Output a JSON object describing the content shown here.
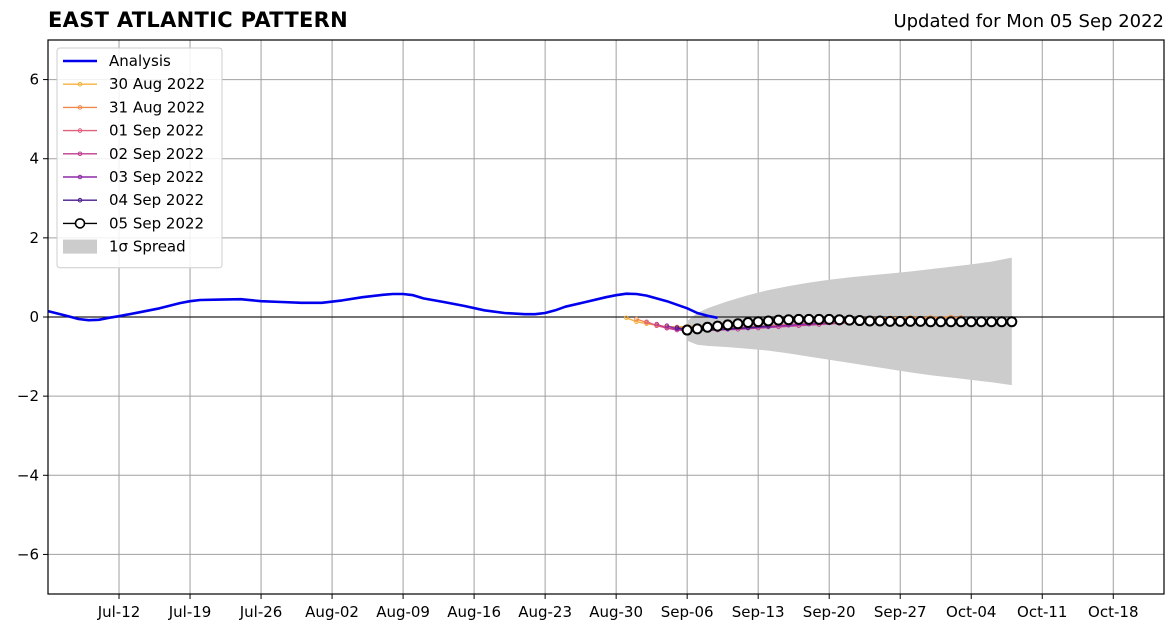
{
  "header": {
    "title": "EAST ATLANTIC PATTERN",
    "updated": "Updated for Mon 05 Sep 2022"
  },
  "chart_data": {
    "type": "line",
    "title": "EAST ATLANTIC PATTERN",
    "subtitle": "Updated for Mon 05 Sep 2022",
    "xlabel": "",
    "ylabel": "",
    "ylim": [
      -7,
      7
    ],
    "yticks": [
      -6,
      -4,
      -2,
      0,
      2,
      4,
      6
    ],
    "ytick_labels": [
      "−6",
      "−4",
      "−2",
      "0",
      "2",
      "4",
      "6"
    ],
    "xlim": [
      "2022-07-05",
      "2022-10-23"
    ],
    "xticks": [
      "2022-07-12",
      "2022-07-19",
      "2022-07-26",
      "2022-08-02",
      "2022-08-09",
      "2022-08-16",
      "2022-08-23",
      "2022-08-30",
      "2022-09-06",
      "2022-09-13",
      "2022-09-20",
      "2022-09-27",
      "2022-10-04",
      "2022-10-11",
      "2022-10-18"
    ],
    "xtick_labels": [
      "Jul-12",
      "Jul-19",
      "Jul-26",
      "Aug-02",
      "Aug-09",
      "Aug-16",
      "Aug-23",
      "Aug-30",
      "Sep-06",
      "Sep-13",
      "Sep-20",
      "Sep-27",
      "Oct-04",
      "Oct-11",
      "Oct-18"
    ],
    "grid": true,
    "legend_position": "top-left",
    "series": [
      {
        "name": "Analysis",
        "color": "#0000ee",
        "style": "line",
        "points": [
          [
            "2022-07-05",
            0.15
          ],
          [
            "2022-07-07",
            0.02
          ],
          [
            "2022-07-08",
            -0.05
          ],
          [
            "2022-07-09",
            -0.08
          ],
          [
            "2022-07-10",
            -0.07
          ],
          [
            "2022-07-11",
            -0.02
          ],
          [
            "2022-07-12",
            0.02
          ],
          [
            "2022-07-14",
            0.12
          ],
          [
            "2022-07-16",
            0.22
          ],
          [
            "2022-07-18",
            0.35
          ],
          [
            "2022-07-19",
            0.4
          ],
          [
            "2022-07-20",
            0.43
          ],
          [
            "2022-07-22",
            0.44
          ],
          [
            "2022-07-24",
            0.45
          ],
          [
            "2022-07-26",
            0.4
          ],
          [
            "2022-07-28",
            0.38
          ],
          [
            "2022-07-30",
            0.36
          ],
          [
            "2022-08-01",
            0.36
          ],
          [
            "2022-08-03",
            0.42
          ],
          [
            "2022-08-05",
            0.5
          ],
          [
            "2022-08-07",
            0.56
          ],
          [
            "2022-08-08",
            0.58
          ],
          [
            "2022-08-09",
            0.58
          ],
          [
            "2022-08-10",
            0.55
          ],
          [
            "2022-08-11",
            0.47
          ],
          [
            "2022-08-13",
            0.38
          ],
          [
            "2022-08-15",
            0.28
          ],
          [
            "2022-08-17",
            0.17
          ],
          [
            "2022-08-19",
            0.1
          ],
          [
            "2022-08-21",
            0.07
          ],
          [
            "2022-08-22",
            0.07
          ],
          [
            "2022-08-23",
            0.1
          ],
          [
            "2022-08-24",
            0.17
          ],
          [
            "2022-08-25",
            0.26
          ],
          [
            "2022-08-27",
            0.38
          ],
          [
            "2022-08-29",
            0.5
          ],
          [
            "2022-08-30",
            0.55
          ],
          [
            "2022-08-31",
            0.59
          ],
          [
            "2022-09-01",
            0.58
          ],
          [
            "2022-09-02",
            0.54
          ],
          [
            "2022-09-04",
            0.4
          ],
          [
            "2022-09-06",
            0.22
          ],
          [
            "2022-09-07",
            0.1
          ],
          [
            "2022-09-08",
            0.03
          ],
          [
            "2022-09-09",
            -0.02
          ]
        ]
      },
      {
        "name": "30 Aug 2022",
        "color": "#f5b041",
        "style": "dots",
        "points": [
          [
            "2022-08-31",
            -0.02
          ],
          [
            "2022-09-01",
            -0.12
          ],
          [
            "2022-09-02",
            -0.17
          ],
          [
            "2022-09-03",
            -0.21
          ],
          [
            "2022-09-04",
            -0.24
          ],
          [
            "2022-09-05",
            -0.25
          ],
          [
            "2022-09-06",
            -0.24
          ],
          [
            "2022-09-08",
            -0.21
          ],
          [
            "2022-09-10",
            -0.18
          ],
          [
            "2022-09-12",
            -0.14
          ],
          [
            "2022-09-14",
            -0.11
          ],
          [
            "2022-09-16",
            -0.08
          ],
          [
            "2022-09-18",
            -0.06
          ],
          [
            "2022-09-20",
            -0.05
          ],
          [
            "2022-09-22",
            -0.04
          ],
          [
            "2022-09-24",
            -0.03
          ],
          [
            "2022-09-26",
            -0.02
          ],
          [
            "2022-09-28",
            -0.01
          ],
          [
            "2022-09-30",
            -0.01
          ],
          [
            "2022-10-02",
            0.0
          ]
        ]
      },
      {
        "name": "31 Aug 2022",
        "color": "#f08a4b",
        "style": "dots",
        "points": [
          [
            "2022-09-01",
            -0.05
          ],
          [
            "2022-09-02",
            -0.14
          ],
          [
            "2022-09-03",
            -0.22
          ],
          [
            "2022-09-04",
            -0.25
          ],
          [
            "2022-09-05",
            -0.26
          ],
          [
            "2022-09-06",
            -0.26
          ],
          [
            "2022-09-08",
            -0.24
          ],
          [
            "2022-09-10",
            -0.21
          ],
          [
            "2022-09-12",
            -0.18
          ],
          [
            "2022-09-14",
            -0.14
          ],
          [
            "2022-09-16",
            -0.11
          ],
          [
            "2022-09-18",
            -0.09
          ],
          [
            "2022-09-20",
            -0.07
          ],
          [
            "2022-09-22",
            -0.05
          ],
          [
            "2022-09-24",
            -0.04
          ],
          [
            "2022-09-26",
            -0.03
          ],
          [
            "2022-09-28",
            -0.02
          ],
          [
            "2022-09-30",
            -0.02
          ],
          [
            "2022-10-02",
            -0.01
          ],
          [
            "2022-10-03",
            -0.01
          ]
        ]
      },
      {
        "name": "01 Sep 2022",
        "color": "#e0607e",
        "style": "dots",
        "points": [
          [
            "2022-09-02",
            -0.12
          ],
          [
            "2022-09-03",
            -0.22
          ],
          [
            "2022-09-04",
            -0.28
          ],
          [
            "2022-09-05",
            -0.3
          ],
          [
            "2022-09-06",
            -0.31
          ],
          [
            "2022-09-08",
            -0.3
          ],
          [
            "2022-09-10",
            -0.28
          ],
          [
            "2022-09-12",
            -0.25
          ],
          [
            "2022-09-14",
            -0.22
          ],
          [
            "2022-09-16",
            -0.19
          ],
          [
            "2022-09-18",
            -0.16
          ],
          [
            "2022-09-20",
            -0.13
          ],
          [
            "2022-09-22",
            -0.11
          ],
          [
            "2022-09-24",
            -0.09
          ]
        ]
      },
      {
        "name": "02 Sep 2022",
        "color": "#c03c8e",
        "style": "dots",
        "points": [
          [
            "2022-09-03",
            -0.18
          ],
          [
            "2022-09-04",
            -0.28
          ],
          [
            "2022-09-05",
            -0.33
          ],
          [
            "2022-09-06",
            -0.34
          ],
          [
            "2022-09-07",
            -0.34
          ],
          [
            "2022-09-09",
            -0.33
          ],
          [
            "2022-09-11",
            -0.31
          ],
          [
            "2022-09-13",
            -0.28
          ],
          [
            "2022-09-15",
            -0.25
          ],
          [
            "2022-09-17",
            -0.22
          ],
          [
            "2022-09-19",
            -0.19
          ],
          [
            "2022-09-21",
            -0.16
          ],
          [
            "2022-09-23",
            -0.13
          ]
        ]
      },
      {
        "name": "03 Sep 2022",
        "color": "#8e2aa6",
        "style": "dots",
        "points": [
          [
            "2022-09-04",
            -0.22
          ],
          [
            "2022-09-05",
            -0.3
          ],
          [
            "2022-09-06",
            -0.33
          ],
          [
            "2022-09-07",
            -0.34
          ],
          [
            "2022-09-08",
            -0.33
          ],
          [
            "2022-09-10",
            -0.31
          ],
          [
            "2022-09-12",
            -0.28
          ],
          [
            "2022-09-14",
            -0.25
          ],
          [
            "2022-09-16",
            -0.21
          ],
          [
            "2022-09-18",
            -0.18
          ],
          [
            "2022-09-20",
            -0.15
          ]
        ]
      },
      {
        "name": "04 Sep 2022",
        "color": "#4a1a8c",
        "style": "dots",
        "points": [
          [
            "2022-09-05",
            -0.27
          ],
          [
            "2022-09-06",
            -0.32
          ],
          [
            "2022-09-07",
            -0.34
          ],
          [
            "2022-09-08",
            -0.33
          ],
          [
            "2022-09-10",
            -0.3
          ],
          [
            "2022-09-12",
            -0.27
          ],
          [
            "2022-09-14",
            -0.23
          ]
        ]
      },
      {
        "name": "05 Sep 2022",
        "color": "#000000",
        "style": "circles",
        "points": [
          [
            "2022-09-06",
            -0.33
          ],
          [
            "2022-09-07",
            -0.3
          ],
          [
            "2022-09-08",
            -0.26
          ],
          [
            "2022-09-09",
            -0.23
          ],
          [
            "2022-09-10",
            -0.2
          ],
          [
            "2022-09-11",
            -0.17
          ],
          [
            "2022-09-12",
            -0.14
          ],
          [
            "2022-09-13",
            -0.12
          ],
          [
            "2022-09-14",
            -0.1
          ],
          [
            "2022-09-15",
            -0.08
          ],
          [
            "2022-09-16",
            -0.07
          ],
          [
            "2022-09-17",
            -0.06
          ],
          [
            "2022-09-18",
            -0.06
          ],
          [
            "2022-09-19",
            -0.06
          ],
          [
            "2022-09-20",
            -0.06
          ],
          [
            "2022-09-21",
            -0.07
          ],
          [
            "2022-09-22",
            -0.08
          ],
          [
            "2022-09-23",
            -0.09
          ],
          [
            "2022-09-24",
            -0.1
          ],
          [
            "2022-09-25",
            -0.1
          ],
          [
            "2022-09-26",
            -0.11
          ],
          [
            "2022-09-27",
            -0.11
          ],
          [
            "2022-09-28",
            -0.11
          ],
          [
            "2022-09-29",
            -0.11
          ],
          [
            "2022-09-30",
            -0.12
          ],
          [
            "2022-10-01",
            -0.12
          ],
          [
            "2022-10-02",
            -0.12
          ],
          [
            "2022-10-03",
            -0.12
          ],
          [
            "2022-10-04",
            -0.12
          ],
          [
            "2022-10-05",
            -0.12
          ],
          [
            "2022-10-06",
            -0.12
          ],
          [
            "2022-10-07",
            -0.12
          ],
          [
            "2022-10-08",
            -0.12
          ]
        ]
      }
    ],
    "spread": {
      "name": "1σ Spread",
      "color": "#cccccc",
      "x": [
        "2022-09-06",
        "2022-09-07",
        "2022-09-08",
        "2022-09-10",
        "2022-09-12",
        "2022-09-14",
        "2022-09-16",
        "2022-09-18",
        "2022-09-20",
        "2022-09-22",
        "2022-09-24",
        "2022-09-26",
        "2022-09-28",
        "2022-09-30",
        "2022-10-02",
        "2022-10-04",
        "2022-10-06",
        "2022-10-08"
      ],
      "upper": [
        -0.1,
        0.1,
        0.22,
        0.4,
        0.55,
        0.68,
        0.78,
        0.87,
        0.94,
        1.0,
        1.05,
        1.1,
        1.15,
        1.21,
        1.27,
        1.33,
        1.4,
        1.5
      ],
      "lower": [
        -0.6,
        -0.7,
        -0.73,
        -0.76,
        -0.8,
        -0.85,
        -0.92,
        -1.0,
        -1.08,
        -1.16,
        -1.24,
        -1.32,
        -1.4,
        -1.47,
        -1.53,
        -1.59,
        -1.65,
        -1.72
      ]
    }
  }
}
